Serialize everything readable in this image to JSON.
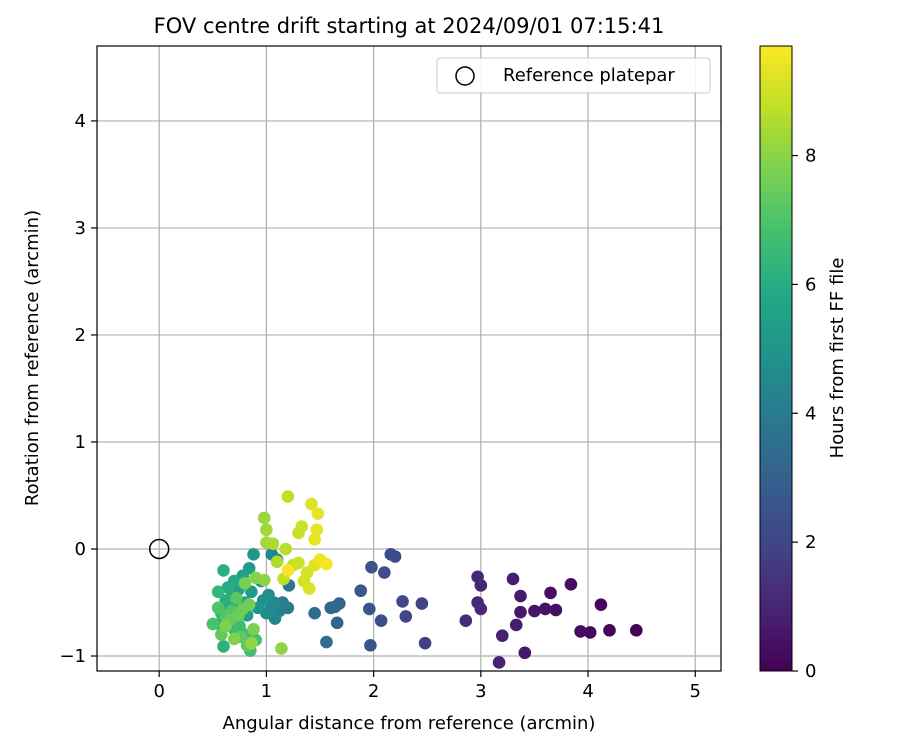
{
  "chart_data": {
    "type": "scatter",
    "title": "FOV centre drift starting at 2024/09/01 07:15:41",
    "xlabel": "Angular distance from reference (arcmin)",
    "ylabel": "Rotation from reference (arcmin)",
    "xlim": [
      -0.58,
      5.24
    ],
    "ylim": [
      -1.14,
      4.7
    ],
    "xticks": [
      0,
      1,
      2,
      3,
      4,
      5
    ],
    "yticks": [
      -1,
      0,
      1,
      2,
      3,
      4
    ],
    "grid": true,
    "legend": {
      "position": "top-right",
      "entries": [
        "Reference platepar"
      ]
    },
    "colorbar": {
      "label": "Hours from first FF file",
      "min": 0,
      "max": 9.7,
      "ticks": [
        0,
        2,
        4,
        6,
        8
      ],
      "colormap": "viridis"
    },
    "reference_point": {
      "x": 0,
      "y": 0,
      "label": "Reference platepar"
    },
    "points": [
      {
        "x": 4.45,
        "y": -0.76,
        "t": 0.05
      },
      {
        "x": 4.2,
        "y": -0.76,
        "t": 0.15
      },
      {
        "x": 4.12,
        "y": -0.52,
        "t": 0.2
      },
      {
        "x": 4.02,
        "y": -0.78,
        "t": 0.25
      },
      {
        "x": 3.93,
        "y": -0.77,
        "t": 0.3
      },
      {
        "x": 3.84,
        "y": -0.33,
        "t": 0.35
      },
      {
        "x": 3.7,
        "y": -0.57,
        "t": 0.4
      },
      {
        "x": 3.65,
        "y": -0.41,
        "t": 0.45
      },
      {
        "x": 3.6,
        "y": -0.56,
        "t": 0.5
      },
      {
        "x": 3.5,
        "y": -0.58,
        "t": 0.55
      },
      {
        "x": 3.41,
        "y": -0.97,
        "t": 0.6
      },
      {
        "x": 3.37,
        "y": -0.59,
        "t": 0.65
      },
      {
        "x": 3.37,
        "y": -0.44,
        "t": 0.7
      },
      {
        "x": 3.33,
        "y": -0.71,
        "t": 0.75
      },
      {
        "x": 3.3,
        "y": -0.28,
        "t": 0.8
      },
      {
        "x": 3.2,
        "y": -0.81,
        "t": 0.85
      },
      {
        "x": 3.17,
        "y": -1.06,
        "t": 0.9
      },
      {
        "x": 3.0,
        "y": -0.34,
        "t": 1.0
      },
      {
        "x": 3.0,
        "y": -0.56,
        "t": 1.05
      },
      {
        "x": 2.97,
        "y": -0.26,
        "t": 1.1
      },
      {
        "x": 2.97,
        "y": -0.5,
        "t": 1.15
      },
      {
        "x": 2.86,
        "y": -0.67,
        "t": 1.25
      },
      {
        "x": 2.48,
        "y": -0.88,
        "t": 1.8
      },
      {
        "x": 2.45,
        "y": -0.51,
        "t": 1.9
      },
      {
        "x": 2.3,
        "y": -0.63,
        "t": 2.0
      },
      {
        "x": 2.27,
        "y": -0.49,
        "t": 2.1
      },
      {
        "x": 2.2,
        "y": -0.07,
        "t": 2.2
      },
      {
        "x": 2.16,
        "y": -0.05,
        "t": 2.25
      },
      {
        "x": 2.1,
        "y": -0.22,
        "t": 2.3
      },
      {
        "x": 2.07,
        "y": -0.67,
        "t": 2.35
      },
      {
        "x": 1.98,
        "y": -0.17,
        "t": 2.45
      },
      {
        "x": 1.97,
        "y": -0.9,
        "t": 2.55
      },
      {
        "x": 1.96,
        "y": -0.56,
        "t": 2.6
      },
      {
        "x": 1.88,
        "y": -0.39,
        "t": 2.7
      },
      {
        "x": 1.68,
        "y": -0.51,
        "t": 3.0
      },
      {
        "x": 1.66,
        "y": -0.69,
        "t": 3.1
      },
      {
        "x": 1.64,
        "y": -0.54,
        "t": 3.2
      },
      {
        "x": 1.6,
        "y": -0.55,
        "t": 3.3
      },
      {
        "x": 1.56,
        "y": -0.87,
        "t": 3.4
      },
      {
        "x": 1.45,
        "y": -0.6,
        "t": 3.5
      },
      {
        "x": 1.21,
        "y": -0.34,
        "t": 3.8
      },
      {
        "x": 1.2,
        "y": -0.55,
        "t": 4.0
      },
      {
        "x": 1.15,
        "y": -0.5,
        "t": 4.1
      },
      {
        "x": 1.12,
        "y": -0.58,
        "t": 4.2
      },
      {
        "x": 1.1,
        "y": -0.1,
        "t": 4.3
      },
      {
        "x": 1.08,
        "y": -0.65,
        "t": 4.4
      },
      {
        "x": 1.07,
        "y": -0.5,
        "t": 4.5
      },
      {
        "x": 1.05,
        "y": -0.05,
        "t": 4.55
      },
      {
        "x": 1.04,
        "y": -0.56,
        "t": 4.6
      },
      {
        "x": 1.02,
        "y": -0.43,
        "t": 4.7
      },
      {
        "x": 1.0,
        "y": -0.6,
        "t": 4.75
      },
      {
        "x": 0.97,
        "y": -0.48,
        "t": 4.85
      },
      {
        "x": 0.95,
        "y": -0.3,
        "t": 4.95
      },
      {
        "x": 0.92,
        "y": -0.55,
        "t": 5.0
      },
      {
        "x": 0.88,
        "y": -0.05,
        "t": 5.1
      },
      {
        "x": 0.86,
        "y": -0.4,
        "t": 5.2
      },
      {
        "x": 0.84,
        "y": -0.18,
        "t": 5.3
      },
      {
        "x": 0.82,
        "y": -0.62,
        "t": 5.35
      },
      {
        "x": 0.8,
        "y": -0.5,
        "t": 5.4
      },
      {
        "x": 0.78,
        "y": -0.25,
        "t": 5.5
      },
      {
        "x": 0.76,
        "y": -0.55,
        "t": 5.55
      },
      {
        "x": 0.74,
        "y": -0.38,
        "t": 5.6
      },
      {
        "x": 0.72,
        "y": -0.6,
        "t": 5.7
      },
      {
        "x": 0.7,
        "y": -0.3,
        "t": 5.8
      },
      {
        "x": 0.68,
        "y": -0.45,
        "t": 5.85
      },
      {
        "x": 0.66,
        "y": -0.52,
        "t": 5.9
      },
      {
        "x": 0.64,
        "y": -0.36,
        "t": 6.0
      },
      {
        "x": 0.62,
        "y": -0.48,
        "t": 6.05
      },
      {
        "x": 0.6,
        "y": -0.2,
        "t": 6.1
      },
      {
        "x": 0.6,
        "y": -0.91,
        "t": 6.2
      },
      {
        "x": 0.58,
        "y": -0.6,
        "t": 6.25
      },
      {
        "x": 0.56,
        "y": -0.7,
        "t": 6.35
      },
      {
        "x": 0.55,
        "y": -0.4,
        "t": 6.4
      },
      {
        "x": 0.7,
        "y": -0.75,
        "t": 6.5
      },
      {
        "x": 0.65,
        "y": -0.68,
        "t": 6.6
      },
      {
        "x": 0.75,
        "y": -0.72,
        "t": 6.65
      },
      {
        "x": 0.8,
        "y": -0.8,
        "t": 6.7
      },
      {
        "x": 0.85,
        "y": -0.95,
        "t": 6.75
      },
      {
        "x": 0.9,
        "y": -0.85,
        "t": 6.8
      },
      {
        "x": 0.5,
        "y": -0.7,
        "t": 6.9
      },
      {
        "x": 0.55,
        "y": -0.55,
        "t": 7.0
      },
      {
        "x": 0.62,
        "y": -0.62,
        "t": 7.05
      },
      {
        "x": 0.68,
        "y": -0.58,
        "t": 7.1
      },
      {
        "x": 0.72,
        "y": -0.46,
        "t": 7.2
      },
      {
        "x": 0.76,
        "y": -0.82,
        "t": 7.25
      },
      {
        "x": 0.82,
        "y": -0.9,
        "t": 7.3
      },
      {
        "x": 0.58,
        "y": -0.8,
        "t": 7.35
      },
      {
        "x": 0.66,
        "y": -0.66,
        "t": 7.4
      },
      {
        "x": 0.74,
        "y": -0.62,
        "t": 7.5
      },
      {
        "x": 0.78,
        "y": -0.56,
        "t": 7.55
      },
      {
        "x": 0.84,
        "y": -0.52,
        "t": 7.6
      },
      {
        "x": 0.8,
        "y": -0.32,
        "t": 7.7
      },
      {
        "x": 0.88,
        "y": -0.75,
        "t": 7.75
      },
      {
        "x": 0.62,
        "y": -0.72,
        "t": 7.8
      },
      {
        "x": 0.7,
        "y": -0.84,
        "t": 7.85
      },
      {
        "x": 0.9,
        "y": -0.27,
        "t": 7.9
      },
      {
        "x": 0.98,
        "y": -0.29,
        "t": 8.0
      },
      {
        "x": 1.14,
        "y": -0.93,
        "t": 8.05
      },
      {
        "x": 0.86,
        "y": -0.88,
        "t": 8.1
      },
      {
        "x": 0.98,
        "y": 0.29,
        "t": 8.2
      },
      {
        "x": 1.0,
        "y": 0.18,
        "t": 8.3
      },
      {
        "x": 1.0,
        "y": 0.06,
        "t": 8.35
      },
      {
        "x": 1.06,
        "y": 0.05,
        "t": 8.45
      },
      {
        "x": 1.1,
        "y": -0.12,
        "t": 8.55
      },
      {
        "x": 1.18,
        "y": 0.0,
        "t": 8.65
      },
      {
        "x": 1.2,
        "y": 0.49,
        "t": 8.75
      },
      {
        "x": 1.16,
        "y": -0.28,
        "t": 8.8
      },
      {
        "x": 1.25,
        "y": -0.15,
        "t": 8.85
      },
      {
        "x": 1.3,
        "y": 0.15,
        "t": 8.9
      },
      {
        "x": 1.33,
        "y": 0.21,
        "t": 8.95
      },
      {
        "x": 1.3,
        "y": -0.13,
        "t": 9.0
      },
      {
        "x": 1.35,
        "y": -0.3,
        "t": 9.05
      },
      {
        "x": 1.38,
        "y": -0.22,
        "t": 9.1
      },
      {
        "x": 1.4,
        "y": -0.37,
        "t": 9.15
      },
      {
        "x": 1.42,
        "y": 0.42,
        "t": 9.2
      },
      {
        "x": 1.45,
        "y": -0.15,
        "t": 9.25
      },
      {
        "x": 1.47,
        "y": 0.18,
        "t": 9.3
      },
      {
        "x": 1.48,
        "y": 0.33,
        "t": 9.35
      },
      {
        "x": 1.45,
        "y": 0.09,
        "t": 9.4
      },
      {
        "x": 1.5,
        "y": -0.1,
        "t": 9.45
      },
      {
        "x": 1.56,
        "y": -0.14,
        "t": 9.55
      },
      {
        "x": 1.2,
        "y": -0.2,
        "t": 9.6
      }
    ]
  }
}
